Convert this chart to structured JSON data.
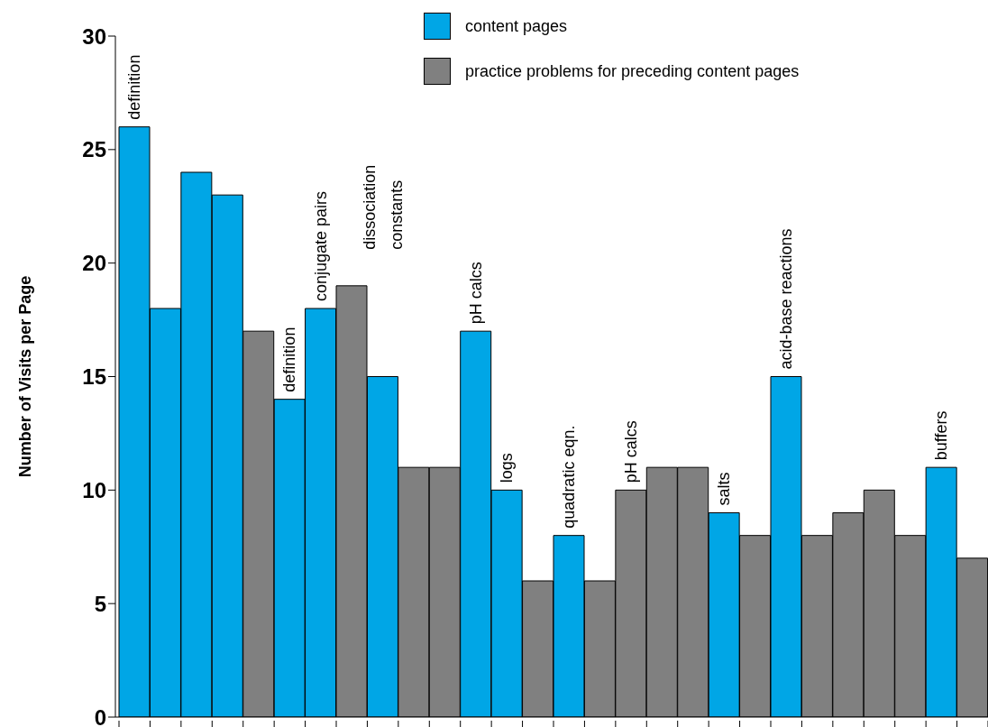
{
  "chart_data": {
    "type": "bar",
    "ylabel": "Number of Visits per Page",
    "categories": [
      "definition",
      null,
      null,
      null,
      null,
      "definition",
      "conjugate pairs",
      null,
      "dissociation constants",
      null,
      null,
      "pH calcs",
      "logs",
      null,
      "quadratic eqn.",
      null,
      "pH calcs",
      null,
      null,
      "salts",
      null,
      "acid-base reactions",
      null,
      null,
      null,
      null,
      "buffers",
      null
    ],
    "series": [
      {
        "name": "content pages",
        "color": "#00a6e6",
        "values": [
          26,
          18,
          24,
          23,
          null,
          14,
          18,
          null,
          15,
          null,
          null,
          17,
          10,
          null,
          8,
          null,
          null,
          null,
          null,
          9,
          null,
          15,
          null,
          null,
          null,
          null,
          11,
          null
        ]
      },
      {
        "name": "practice problems for preceding content pages",
        "color": "#808080",
        "values": [
          null,
          null,
          null,
          null,
          17,
          null,
          null,
          19,
          null,
          11,
          11,
          null,
          null,
          6,
          null,
          6,
          10,
          11,
          11,
          null,
          8,
          null,
          8,
          9,
          10,
          8,
          null,
          7
        ]
      }
    ],
    "stacked": true,
    "ylim": [
      0,
      30
    ],
    "yticks": [
      0,
      5,
      10,
      15,
      20,
      25,
      30
    ],
    "grid": false,
    "legend": "top right"
  }
}
